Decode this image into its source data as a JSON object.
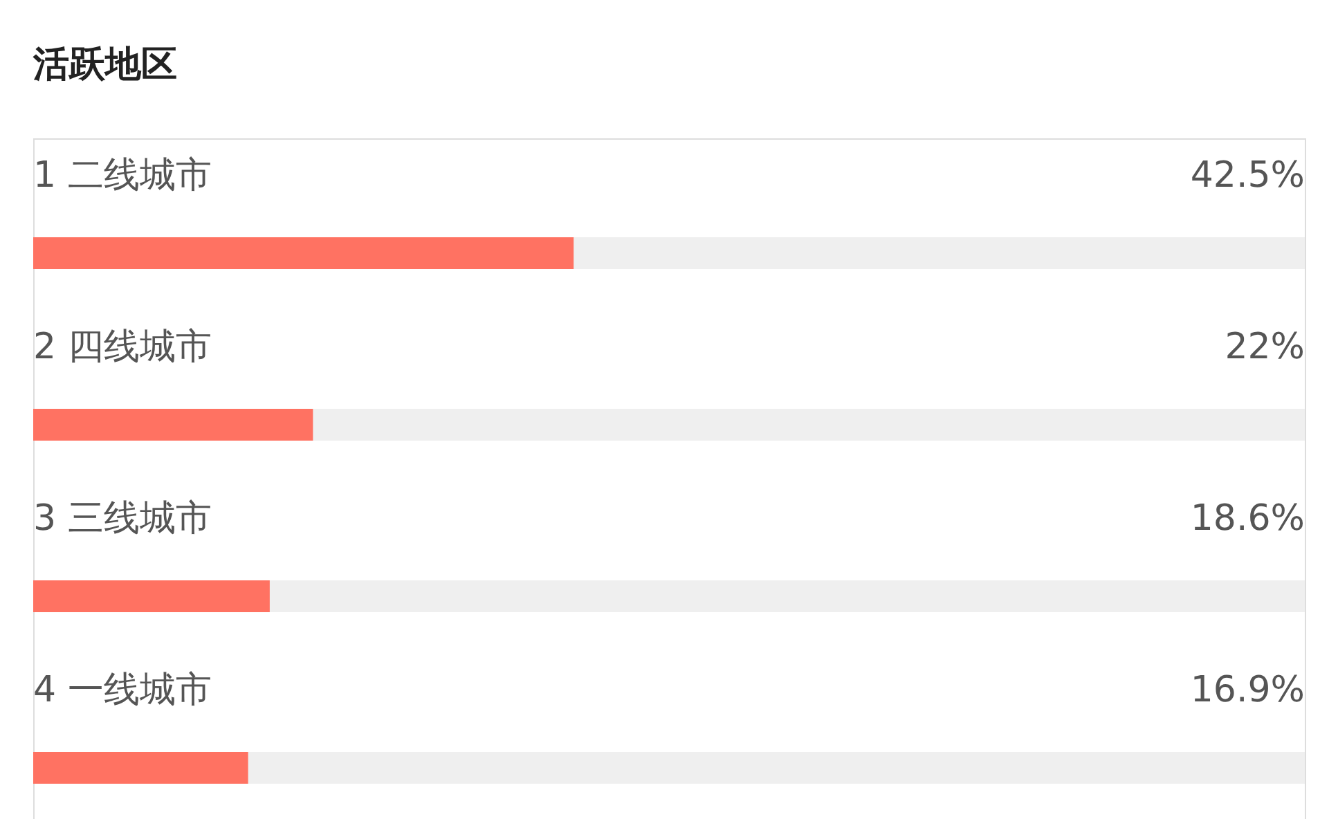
{
  "chart_data": {
    "type": "bar",
    "orientation": "horizontal",
    "title": "活跃地区",
    "categories": [
      "1 二线城市",
      "2 四线城市",
      "3 三线城市",
      "4 一线城市"
    ],
    "values": [
      42.5,
      22,
      18.6,
      16.9
    ],
    "value_labels": [
      "42.5%",
      "22%",
      "18.6%",
      "16.9%"
    ],
    "color": "#ff7262",
    "xlim": [
      0,
      100
    ],
    "tick_labels": false
  }
}
